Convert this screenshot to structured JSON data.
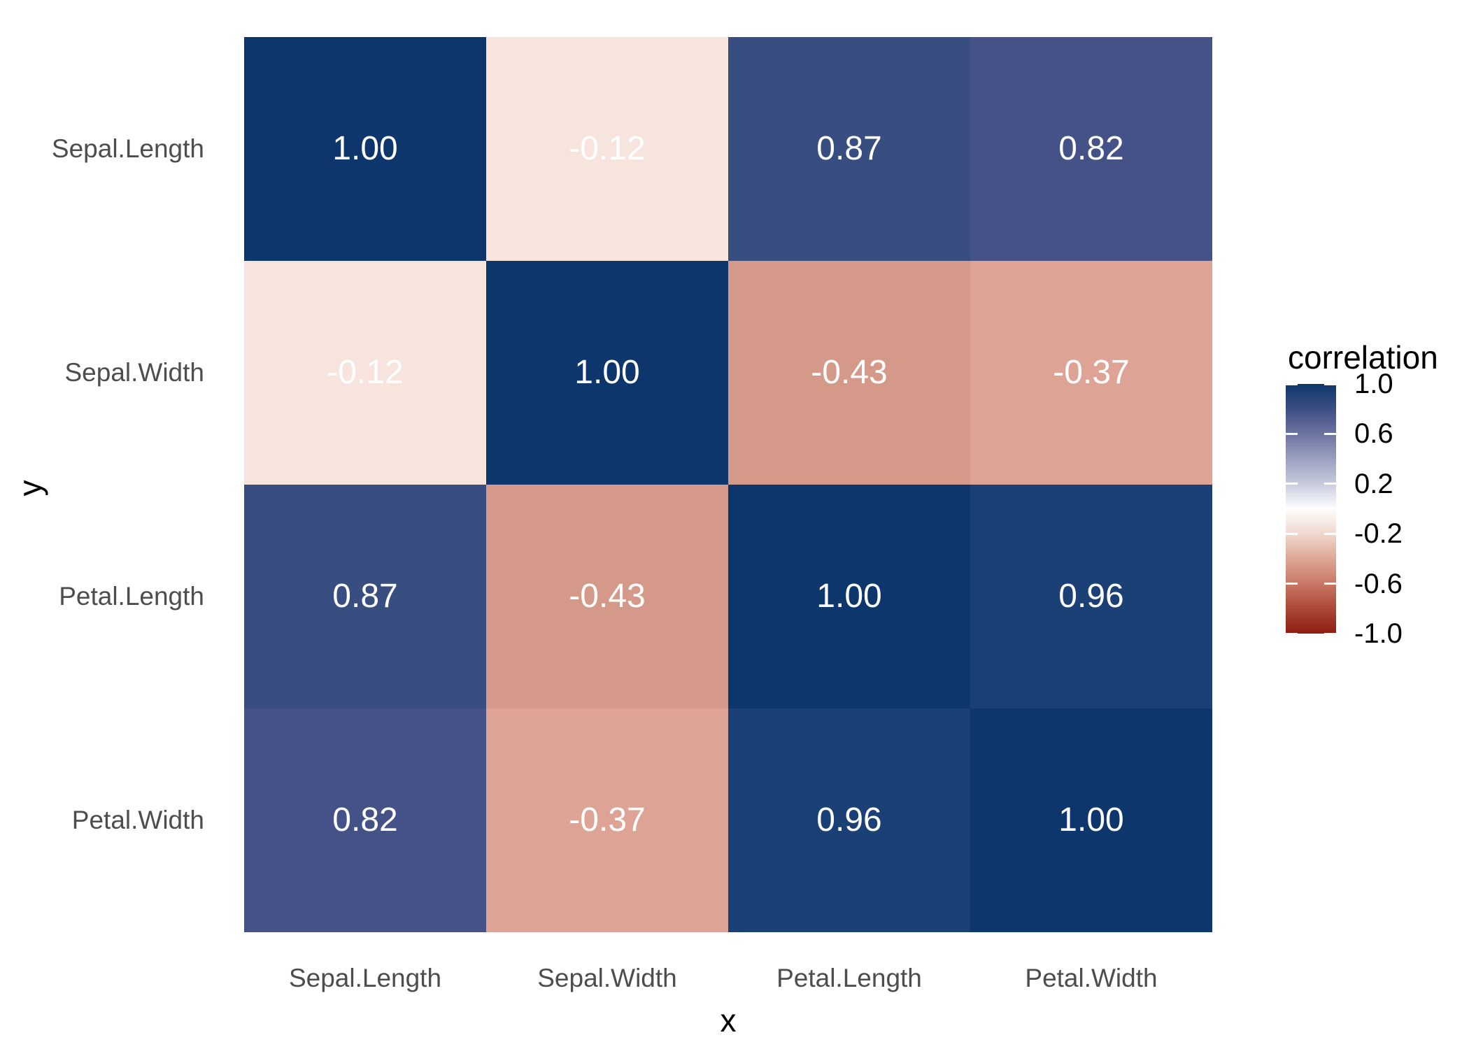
{
  "chart_data": {
    "type": "heatmap",
    "title": "",
    "xlabel": "x",
    "ylabel": "y",
    "x_categories": [
      "Sepal.Length",
      "Sepal.Width",
      "Petal.Length",
      "Petal.Width"
    ],
    "y_categories": [
      "Sepal.Length",
      "Sepal.Width",
      "Petal.Length",
      "Petal.Width"
    ],
    "values": [
      [
        1.0,
        -0.12,
        0.87,
        0.82
      ],
      [
        -0.12,
        1.0,
        -0.43,
        -0.37
      ],
      [
        0.87,
        -0.43,
        1.0,
        0.96
      ],
      [
        0.82,
        -0.37,
        0.96,
        1.0
      ]
    ],
    "cell_labels": [
      [
        "1.00",
        "-0.12",
        "0.87",
        "0.82"
      ],
      [
        "-0.12",
        "1.00",
        "-0.43",
        "-0.37"
      ],
      [
        "0.87",
        "-0.43",
        "1.00",
        "0.96"
      ],
      [
        "0.82",
        "-0.37",
        "0.96",
        "1.00"
      ]
    ],
    "cell_colors": [
      [
        "#0D376C",
        "#F7E4DC",
        "#384E81",
        "#445287"
      ],
      [
        "#F7E4DC",
        "#0D376C",
        "#D5998A",
        "#DDA496"
      ],
      [
        "#384E81",
        "#D5998A",
        "#0D376C",
        "#1B4076"
      ],
      [
        "#445287",
        "#DDA496",
        "#1B4076",
        "#0D376C"
      ]
    ],
    "cell_text_color": "#FFFFFF",
    "axis_text_color": "#4D4D4D",
    "axis_title_color": "#000000",
    "grid": "off",
    "legend": {
      "title": "correlation",
      "position": "right",
      "limits": [
        -1.0,
        1.0
      ],
      "tick_labels": [
        "1.0",
        "0.6",
        "0.2",
        "-0.2",
        "-0.6",
        "-1.0"
      ],
      "tick_values": [
        1.0,
        0.6,
        0.2,
        -0.2,
        -0.6,
        -1.0
      ],
      "gradient_stops": [
        {
          "offset": 0,
          "color": "#0D376C"
        },
        {
          "offset": 10,
          "color": "#3D4E83"
        },
        {
          "offset": 20,
          "color": "#6B74A0"
        },
        {
          "offset": 30,
          "color": "#9AA0C0"
        },
        {
          "offset": 40,
          "color": "#C7CBDD"
        },
        {
          "offset": 50,
          "color": "#FEFEFE"
        },
        {
          "offset": 60,
          "color": "#F0D8CE"
        },
        {
          "offset": 70,
          "color": "#DDA794"
        },
        {
          "offset": 80,
          "color": "#C87866"
        },
        {
          "offset": 90,
          "color": "#AB4836"
        },
        {
          "offset": 100,
          "color": "#8E1C0F"
        }
      ]
    }
  }
}
